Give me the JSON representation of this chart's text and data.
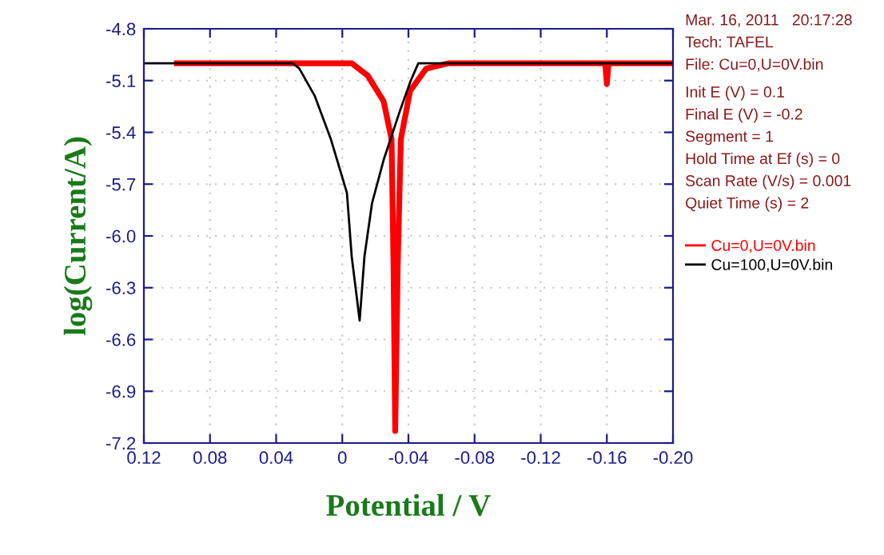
{
  "chart_data": {
    "type": "line",
    "xlabel": "Potential / V",
    "ylabel": "log(Current/A)",
    "xlim": [
      0.12,
      -0.2
    ],
    "xticks": [
      0.12,
      0.08,
      0.04,
      0,
      -0.04,
      -0.08,
      -0.12,
      -0.16,
      {
        "value": -0.2,
        "label": "-0.20"
      }
    ],
    "ylim": [
      -7.2,
      -4.8
    ],
    "yticks": [
      -7.2,
      -6.9,
      -6.6,
      -6.3,
      {
        "value": -6.0,
        "label": "-6.0"
      },
      -5.7,
      -5.4,
      -5.1,
      -4.8
    ],
    "grid": true,
    "legend": "right",
    "marker": "none",
    "line_style": "solid",
    "annotations": [
      "Mar. 16, 2011   20:17:28",
      "Tech: TAFEL",
      "File: Cu=0,U=0V.bin",
      "Init E (V) = 0.1",
      "Final E (V) = -0.2",
      "Segment = 1",
      "Hold Time at Ef (s) = 0",
      "Scan Rate (V/s) = 0.001",
      "Quiet Time (s) = 2"
    ],
    "series": [
      {
        "name": "Cu=0,U=0V.bin",
        "color": "#ff0000",
        "x": [
          0.1,
          0.0,
          -0.0057,
          -0.0153,
          -0.025,
          -0.0298,
          -0.031,
          -0.032,
          -0.0335,
          -0.0354,
          -0.041,
          -0.0508,
          -0.064,
          -0.159,
          -0.16,
          -0.161,
          -0.2
        ],
        "values": [
          -5.0,
          -5.0,
          -5.0,
          -5.07,
          -5.22,
          -5.44,
          -6.18,
          -7.13,
          -6.18,
          -5.44,
          -5.16,
          -5.03,
          -5.0,
          -5.0,
          -5.12,
          -5.0,
          -5.0
        ]
      },
      {
        "name": "Cu=100,U=0V.bin",
        "color": "#000000",
        "x": [
          0.12,
          0.03,
          0.026,
          0.0166,
          0.0069,
          -0.0028,
          -0.0057,
          -0.0105,
          -0.0134,
          -0.018,
          -0.025,
          -0.0347,
          -0.0414,
          -0.046,
          -0.2
        ],
        "values": [
          -5.0,
          -5.0,
          -5.03,
          -5.19,
          -5.44,
          -5.75,
          -6.12,
          -6.49,
          -6.12,
          -5.81,
          -5.56,
          -5.28,
          -5.1,
          -5.0,
          -5.0
        ]
      }
    ]
  }
}
